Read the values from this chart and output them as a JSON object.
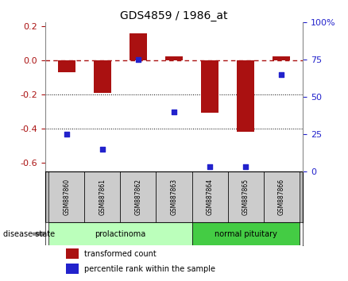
{
  "title": "GDS4859 / 1986_at",
  "samples": [
    "GSM887860",
    "GSM887861",
    "GSM887862",
    "GSM887863",
    "GSM887864",
    "GSM887865",
    "GSM887866"
  ],
  "bar_values": [
    -0.07,
    -0.19,
    0.155,
    0.02,
    -0.31,
    -0.42,
    0.02
  ],
  "scatter_pct": [
    25,
    15,
    75,
    40,
    3,
    3,
    65
  ],
  "bar_color": "#aa1111",
  "scatter_color": "#2222cc",
  "ylim_left": [
    -0.65,
    0.22
  ],
  "ylim_right": [
    0,
    100
  ],
  "yticks_left": [
    0.2,
    0.0,
    -0.2,
    -0.4,
    -0.6
  ],
  "yticks_right": [
    100,
    75,
    50,
    25,
    0
  ],
  "hline_y": 0.0,
  "dotted_lines": [
    -0.2,
    -0.4
  ],
  "disease_groups": [
    {
      "label": "prolactinoma",
      "indices": [
        0,
        1,
        2,
        3
      ],
      "color": "#bbffbb"
    },
    {
      "label": "normal pituitary",
      "indices": [
        4,
        5,
        6
      ],
      "color": "#44cc44"
    }
  ],
  "legend_bar_label": "transformed count",
  "legend_scatter_label": "percentile rank within the sample",
  "disease_state_label": "disease state",
  "background_color": "#ffffff",
  "bar_width": 0.5
}
